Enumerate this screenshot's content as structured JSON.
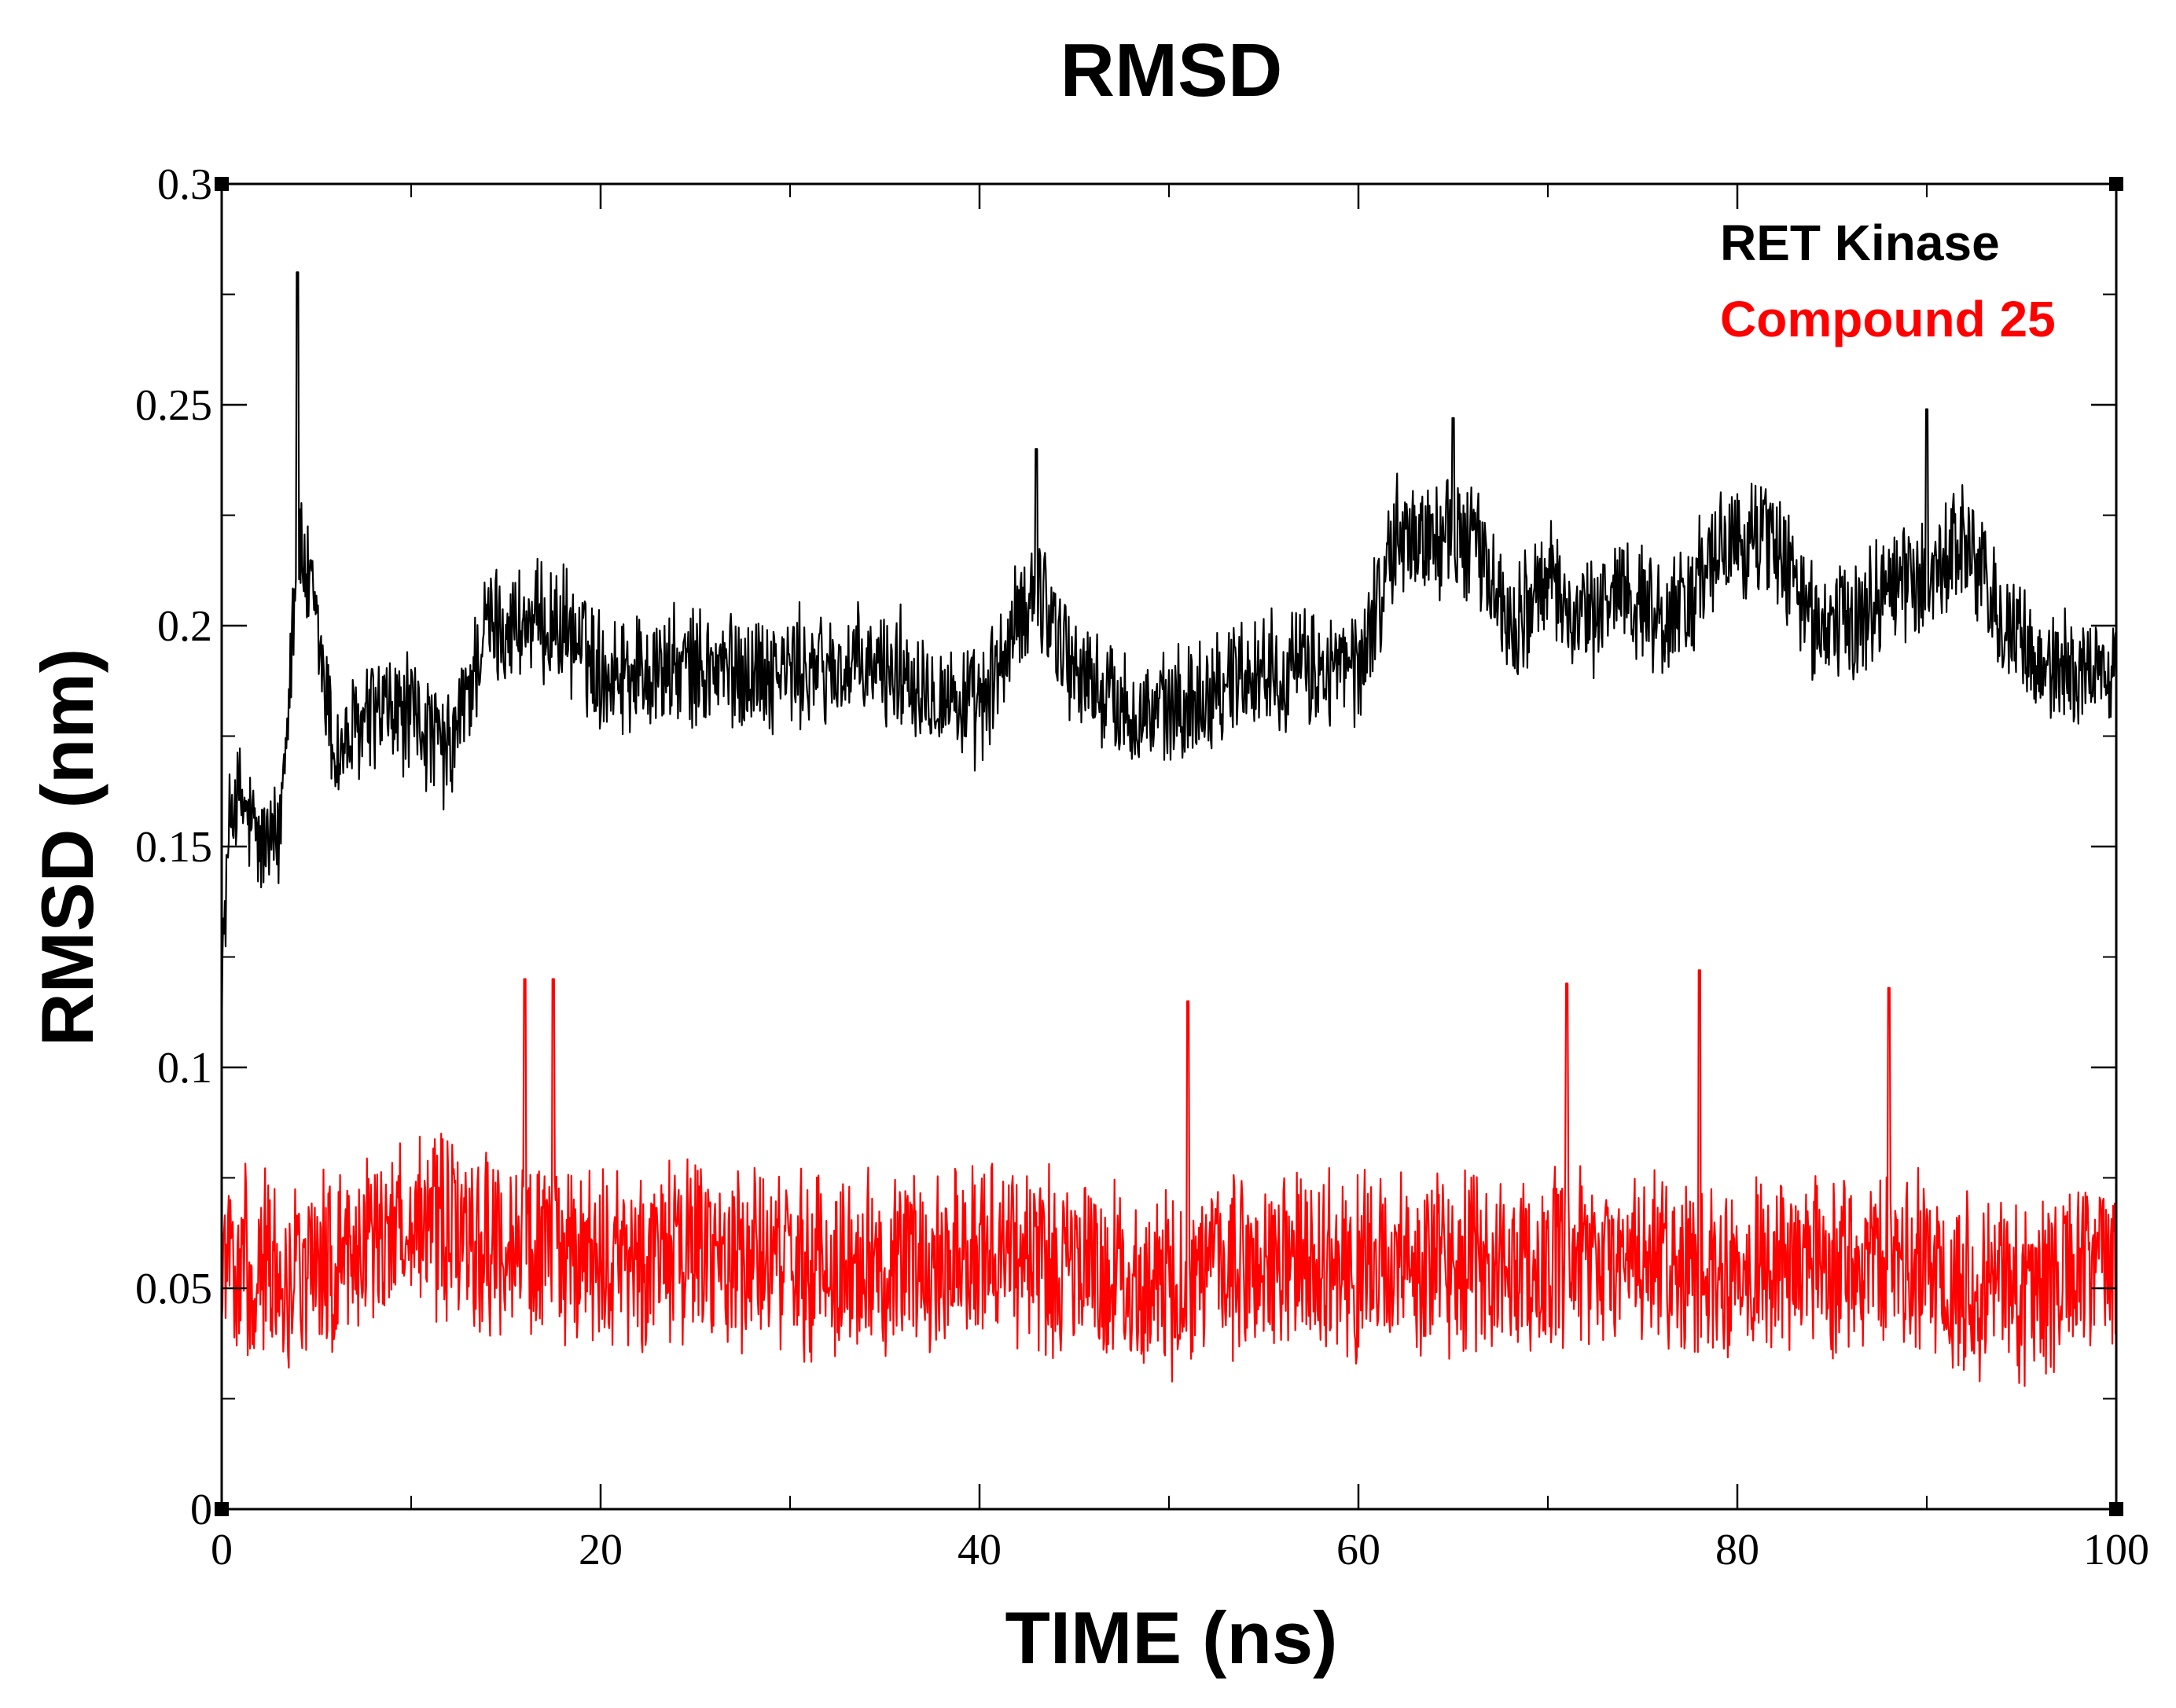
{
  "chart_data": {
    "type": "line",
    "title": "RMSD",
    "xlabel": "TIME (ns)",
    "ylabel": "RMSD (nm)",
    "xlim": [
      0,
      100
    ],
    "ylim": [
      0,
      0.3
    ],
    "x_ticks": [
      0,
      20,
      40,
      60,
      80,
      100
    ],
    "x_tick_labels": [
      "0",
      "20",
      "40",
      "60",
      "80",
      "100"
    ],
    "y_ticks": [
      0,
      0.05,
      0.1,
      0.15,
      0.2,
      0.25,
      0.3
    ],
    "y_tick_labels": [
      "0",
      "0.05",
      "0.1",
      "0.15",
      "0.2",
      "0.25",
      "0.3"
    ],
    "legend_position": "top-right",
    "series": [
      {
        "name": "RET Kinase",
        "color": "#000000",
        "x": [
          0,
          0.5,
          1,
          2,
          3,
          4,
          5,
          6,
          8,
          10,
          12,
          14,
          16,
          18,
          20,
          24,
          28,
          32,
          36,
          40,
          43,
          45,
          48,
          50,
          54,
          58,
          60,
          62,
          64,
          66,
          68,
          70,
          72,
          74,
          76,
          78,
          80,
          82,
          84,
          86,
          88,
          90,
          92,
          94,
          96,
          98,
          100
        ],
        "values": [
          0.12,
          0.16,
          0.16,
          0.15,
          0.15,
          0.22,
          0.2,
          0.17,
          0.18,
          0.18,
          0.17,
          0.2,
          0.2,
          0.2,
          0.19,
          0.19,
          0.19,
          0.19,
          0.19,
          0.18,
          0.21,
          0.19,
          0.18,
          0.18,
          0.19,
          0.19,
          0.19,
          0.22,
          0.22,
          0.22,
          0.2,
          0.21,
          0.2,
          0.21,
          0.2,
          0.21,
          0.22,
          0.22,
          0.2,
          0.2,
          0.21,
          0.21,
          0.22,
          0.2,
          0.19,
          0.19,
          0.19
        ],
        "fluctuation": 0.012,
        "peaks": [
          [
            4,
            0.28
          ],
          [
            43,
            0.24
          ],
          [
            65,
            0.247
          ],
          [
            90,
            0.249
          ]
        ]
      },
      {
        "name": "Compound 25",
        "color": "#ff0000",
        "x": [
          0,
          5,
          10,
          15,
          20,
          25,
          30,
          35,
          40,
          45,
          50,
          55,
          60,
          65,
          70,
          75,
          80,
          85,
          90,
          95,
          100
        ],
        "values": [
          0.055,
          0.055,
          0.065,
          0.06,
          0.055,
          0.06,
          0.055,
          0.055,
          0.06,
          0.055,
          0.05,
          0.055,
          0.055,
          0.055,
          0.055,
          0.055,
          0.055,
          0.055,
          0.055,
          0.05,
          0.055
        ],
        "fluctuation": 0.018,
        "peaks": [
          [
            16,
            0.12
          ],
          [
            17.5,
            0.12
          ],
          [
            51,
            0.115
          ],
          [
            71,
            0.119
          ],
          [
            78,
            0.122
          ],
          [
            88,
            0.118
          ]
        ]
      }
    ]
  }
}
